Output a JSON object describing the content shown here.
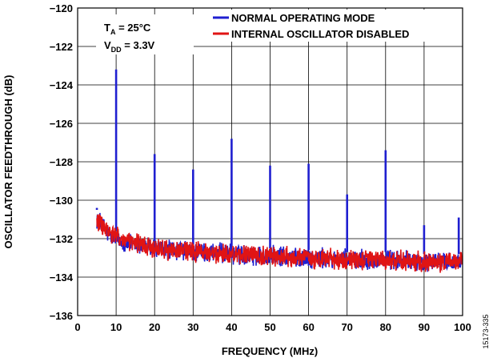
{
  "chart_data": {
    "type": "line",
    "xlabel": "FREQUENCY (MHz)",
    "ylabel": "OSCILLATOR FEEDTHROUGH (dB)",
    "xlim": [
      0,
      100
    ],
    "ylim": [
      -136,
      -120
    ],
    "x_ticks": [
      "0",
      "10",
      "20",
      "30",
      "40",
      "50",
      "60",
      "70",
      "80",
      "90",
      "100"
    ],
    "y_ticks": [
      "−120",
      "−122",
      "−124",
      "−126",
      "−128",
      "−130",
      "−132",
      "−134",
      "−136"
    ],
    "grid": true,
    "legend_position": "top-right",
    "annotation": {
      "temp_prefix": "T",
      "temp_sub": "A",
      "temp_value": " = 25°C",
      "vdd_prefix": "V",
      "vdd_sub": "DD",
      "vdd_value": " = 3.3V"
    },
    "series": [
      {
        "name": "NORMAL OPERATING MODE",
        "color": "#1f1fd0",
        "noise_floor": [
          [
            5,
            -130.9
          ],
          [
            8,
            -131.8
          ],
          [
            12,
            -132.2
          ],
          [
            20,
            -132.5
          ],
          [
            30,
            -132.7
          ],
          [
            40,
            -132.8
          ],
          [
            50,
            -132.9
          ],
          [
            60,
            -133.0
          ],
          [
            70,
            -133.1
          ],
          [
            80,
            -133.1
          ],
          [
            90,
            -133.2
          ],
          [
            100,
            -133.2
          ]
        ],
        "spurs": [
          [
            5,
            -130.4
          ],
          [
            10,
            -123.2
          ],
          [
            20,
            -127.6
          ],
          [
            30,
            -128.4
          ],
          [
            40,
            -126.8
          ],
          [
            50,
            -128.2
          ],
          [
            60,
            -128.1
          ],
          [
            70,
            -129.7
          ],
          [
            80,
            -127.4
          ],
          [
            90,
            -131.3
          ],
          [
            99,
            -130.9
          ]
        ]
      },
      {
        "name": "INTERNAL OSCILLATOR DISABLED",
        "color": "#e01414",
        "noise_floor": [
          [
            5,
            -131.0
          ],
          [
            8,
            -131.7
          ],
          [
            12,
            -132.1
          ],
          [
            20,
            -132.5
          ],
          [
            30,
            -132.7
          ],
          [
            40,
            -132.8
          ],
          [
            50,
            -132.9
          ],
          [
            60,
            -133.0
          ],
          [
            70,
            -133.1
          ],
          [
            80,
            -133.1
          ],
          [
            90,
            -133.2
          ],
          [
            100,
            -133.2
          ]
        ],
        "spurs": []
      }
    ]
  },
  "figure_id": "15173-335"
}
